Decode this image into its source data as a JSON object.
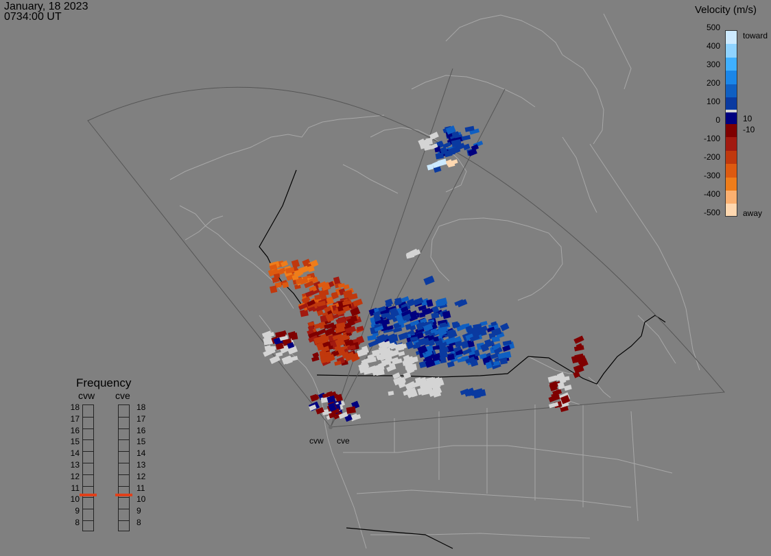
{
  "header": {
    "date": "January, 18 2023",
    "time": "0734:00 UT"
  },
  "colorbar": {
    "title": "Velocity (m/s)",
    "ticks": [
      "500",
      "400",
      "300",
      "200",
      "100",
      "0",
      "-100",
      "-200",
      "-300",
      "-400",
      "-500"
    ],
    "pos_threshold": "10",
    "neg_threshold": "-10",
    "toward_label": "toward",
    "away_label": "away",
    "colors": [
      "#cdeaff",
      "#8fd3ff",
      "#3fb0ff",
      "#1a86e8",
      "#0f5fc2",
      "#0a3aa0",
      "#00007f",
      "#7f0000",
      "#a21a10",
      "#c0380d",
      "#dd5a10",
      "#ef7d1a",
      "#fbb070",
      "#ffd8b0"
    ],
    "ground_scatter_color": "#d4d4d4"
  },
  "frequency": {
    "title": "Frequency",
    "radars": [
      "cvw",
      "cve"
    ],
    "levels": [
      "18",
      "17",
      "16",
      "15",
      "14",
      "13",
      "12",
      "11",
      "10",
      "9",
      "8"
    ],
    "current_mhz": [
      10.7,
      10.7
    ],
    "indicator_color": "#e0401a"
  },
  "map": {
    "radar_labels": [
      "cvw",
      "cve"
    ]
  }
}
